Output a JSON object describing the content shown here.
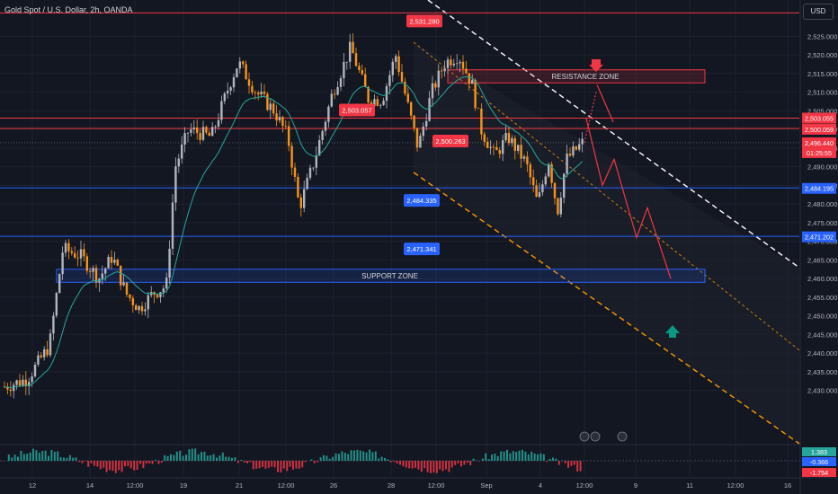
{
  "header": {
    "title": "Gold Spot / U.S. Dollar, 2h, OANDA",
    "currency_button": "USD"
  },
  "colors": {
    "background": "#131722",
    "up_candle": "#b2b5be",
    "down_candle": "#f7931a",
    "ma_line": "#26a69a",
    "resistance": "#f23645",
    "support": "#2962ff",
    "channel_top": "#ffffff",
    "channel_bottom": "#ff9800",
    "forecast": "#f23645",
    "down_arrow": "#f23645",
    "up_arrow": "#089981"
  },
  "chart_data": {
    "type": "candlestick",
    "instrument": "Gold Spot / U.S. Dollar",
    "timeframe": "2h",
    "source": "OANDA",
    "ylim": [
      2428,
      2537
    ],
    "y_ticks": [
      2430,
      2435,
      2440,
      2445,
      2450,
      2455,
      2460,
      2465,
      2470,
      2475,
      2480,
      2485,
      2490,
      2495,
      2500,
      2505,
      2510,
      2515,
      2520,
      2525
    ],
    "x_ticks": [
      "12",
      "14",
      "12:00",
      "19",
      "21",
      "12:00",
      "26",
      "28",
      "12:00",
      "Sep",
      "4",
      "12:00",
      "9",
      "11",
      "12:00",
      "16"
    ],
    "horizontal_levels": [
      {
        "price": 2531.28,
        "label": "2,531.280",
        "color": "#f23645"
      },
      {
        "price": 2503.057,
        "label": "2,503.057",
        "color": "#f23645"
      },
      {
        "price": 2500.263,
        "label": "2,500.263",
        "color": "#f23645"
      },
      {
        "price": 2484.335,
        "label": "2,484.335",
        "color": "#2962ff"
      },
      {
        "price": 2471.341,
        "label": "2,471.341",
        "color": "#2962ff"
      }
    ],
    "axis_labels": [
      {
        "price": 2503.055,
        "label": "2,503.055",
        "color": "#f23645"
      },
      {
        "price": 2500.059,
        "label": "2,500.059",
        "color": "#f23645"
      },
      {
        "price": 2496.44,
        "label": "2,496.440",
        "color": "#f23645"
      },
      {
        "price": 2484.195,
        "label": "2,484.195",
        "color": "#2962ff"
      },
      {
        "price": 2471.202,
        "label": "2,471.202",
        "color": "#2962ff"
      }
    ],
    "countdown": "01:25:55",
    "zones": [
      {
        "name": "RESISTANCE ZONE",
        "from": 2512.5,
        "to": 2516,
        "color": "#f23645"
      },
      {
        "name": "SUPPORT ZONE",
        "from": 2459,
        "to": 2462.5,
        "color": "#2962ff"
      }
    ],
    "oscillator": {
      "values": [
        "1.383",
        "-0.366",
        "-1.754"
      ],
      "colors": [
        "#26a69a",
        "#2962ff",
        "#f23645"
      ]
    }
  }
}
